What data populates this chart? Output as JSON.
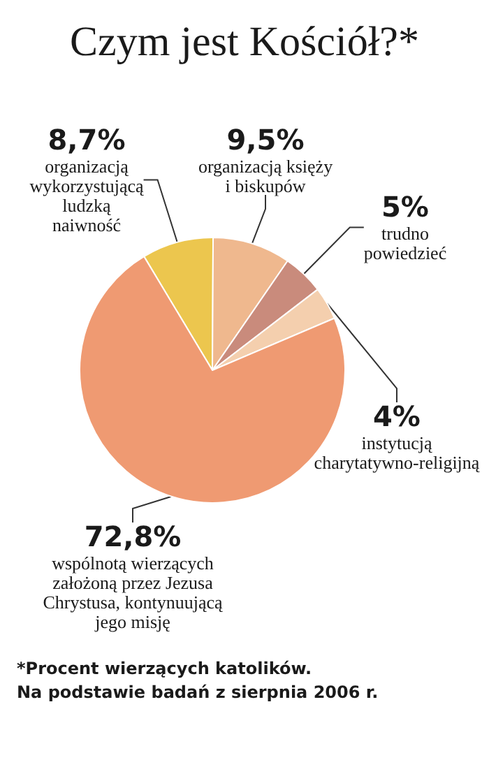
{
  "chart_data": {
    "type": "pie",
    "title": "Czym jest Kościół?*",
    "categories": [
      "organizacją wykorzystującą ludzką naiwność",
      "organizacją księży i biskupów",
      "trudno powiedzieć",
      "instytucją charytatywno-religijną",
      "wspólnotą wierzących założoną przez Jezusa Chrystusa, kontynuującą jego misję"
    ],
    "values": [
      8.7,
      9.5,
      5,
      4,
      72.8
    ],
    "value_labels": [
      "8,7%",
      "9,5%",
      "5%",
      "4%",
      "72,8%"
    ],
    "colors": [
      "#ecc64e",
      "#efb88e",
      "#c98b7c",
      "#f4cfae",
      "#ef9a72"
    ],
    "annotations": [
      "*Procent wierzących katolików.\nNa podstawie badań z sierpnia 2006 r."
    ]
  }
}
